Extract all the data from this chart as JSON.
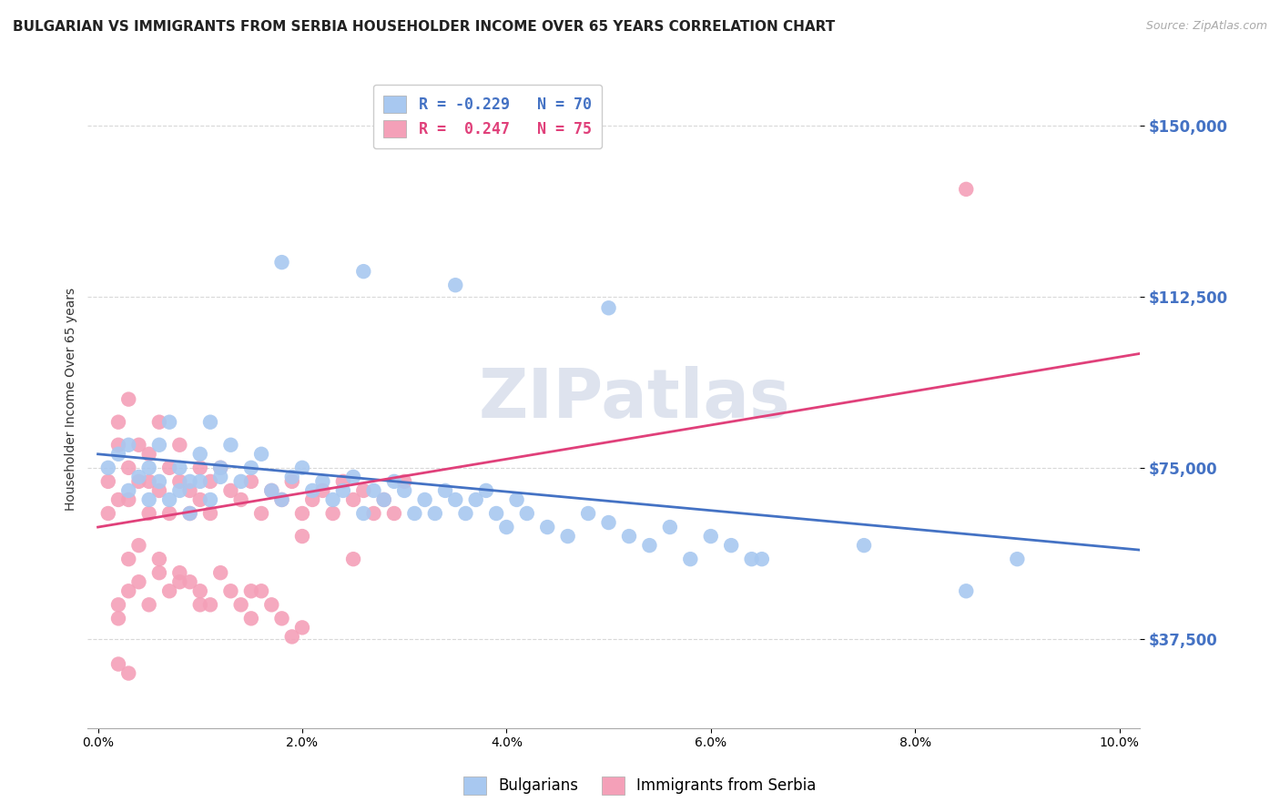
{
  "title": "BULGARIAN VS IMMIGRANTS FROM SERBIA HOUSEHOLDER INCOME OVER 65 YEARS CORRELATION CHART",
  "source": "Source: ZipAtlas.com",
  "ylabel": "Householder Income Over 65 years",
  "ytick_labels": [
    "$37,500",
    "$75,000",
    "$112,500",
    "$150,000"
  ],
  "ytick_values": [
    37500,
    75000,
    112500,
    150000
  ],
  "ylim": [
    18000,
    162000
  ],
  "xlim": [
    -0.001,
    0.102
  ],
  "legend_entries": [
    {
      "label": "R = -0.229   N = 70",
      "color": "#a8c8f0",
      "text_color": "#4472c4"
    },
    {
      "label": "R =  0.247   N = 75",
      "color": "#f4a0b8",
      "text_color": "#e0407a"
    }
  ],
  "legend_labels": [
    "Bulgarians",
    "Immigrants from Serbia"
  ],
  "watermark": "ZIPatlas",
  "blue_scatter": {
    "x": [
      0.001,
      0.002,
      0.003,
      0.003,
      0.004,
      0.005,
      0.005,
      0.006,
      0.006,
      0.007,
      0.007,
      0.008,
      0.008,
      0.009,
      0.009,
      0.01,
      0.01,
      0.011,
      0.011,
      0.012,
      0.012,
      0.013,
      0.014,
      0.015,
      0.016,
      0.017,
      0.018,
      0.019,
      0.02,
      0.021,
      0.022,
      0.023,
      0.024,
      0.025,
      0.026,
      0.027,
      0.028,
      0.029,
      0.03,
      0.031,
      0.032,
      0.033,
      0.034,
      0.035,
      0.036,
      0.037,
      0.038,
      0.039,
      0.04,
      0.041,
      0.042,
      0.044,
      0.046,
      0.048,
      0.05,
      0.052,
      0.054,
      0.056,
      0.058,
      0.06,
      0.062,
      0.064,
      0.018,
      0.026,
      0.035,
      0.05,
      0.065,
      0.075,
      0.085,
      0.09
    ],
    "y": [
      75000,
      78000,
      70000,
      80000,
      73000,
      75000,
      68000,
      72000,
      80000,
      85000,
      68000,
      75000,
      70000,
      72000,
      65000,
      78000,
      72000,
      85000,
      68000,
      75000,
      73000,
      80000,
      72000,
      75000,
      78000,
      70000,
      68000,
      73000,
      75000,
      70000,
      72000,
      68000,
      70000,
      73000,
      65000,
      70000,
      68000,
      72000,
      70000,
      65000,
      68000,
      65000,
      70000,
      68000,
      65000,
      68000,
      70000,
      65000,
      62000,
      68000,
      65000,
      62000,
      60000,
      65000,
      63000,
      60000,
      58000,
      62000,
      55000,
      60000,
      58000,
      55000,
      120000,
      118000,
      115000,
      110000,
      55000,
      58000,
      48000,
      55000
    ]
  },
  "pink_scatter": {
    "x": [
      0.001,
      0.001,
      0.002,
      0.002,
      0.002,
      0.003,
      0.003,
      0.003,
      0.004,
      0.004,
      0.005,
      0.005,
      0.005,
      0.006,
      0.006,
      0.007,
      0.007,
      0.008,
      0.008,
      0.009,
      0.009,
      0.01,
      0.01,
      0.011,
      0.011,
      0.012,
      0.013,
      0.014,
      0.015,
      0.016,
      0.017,
      0.018,
      0.019,
      0.02,
      0.021,
      0.022,
      0.023,
      0.024,
      0.025,
      0.026,
      0.027,
      0.028,
      0.029,
      0.03,
      0.025,
      0.02,
      0.015,
      0.01,
      0.008,
      0.006,
      0.004,
      0.003,
      0.002,
      0.002,
      0.003,
      0.004,
      0.005,
      0.006,
      0.007,
      0.008,
      0.009,
      0.01,
      0.011,
      0.012,
      0.013,
      0.014,
      0.015,
      0.016,
      0.017,
      0.018,
      0.019,
      0.02,
      0.003,
      0.085,
      0.002
    ],
    "y": [
      72000,
      65000,
      80000,
      85000,
      68000,
      90000,
      75000,
      68000,
      80000,
      72000,
      78000,
      65000,
      72000,
      85000,
      70000,
      75000,
      65000,
      72000,
      80000,
      70000,
      65000,
      75000,
      68000,
      72000,
      65000,
      75000,
      70000,
      68000,
      72000,
      65000,
      70000,
      68000,
      72000,
      65000,
      68000,
      70000,
      65000,
      72000,
      68000,
      70000,
      65000,
      68000,
      65000,
      72000,
      55000,
      60000,
      48000,
      45000,
      50000,
      52000,
      58000,
      55000,
      45000,
      42000,
      48000,
      50000,
      45000,
      55000,
      48000,
      52000,
      50000,
      48000,
      45000,
      52000,
      48000,
      45000,
      42000,
      48000,
      45000,
      42000,
      38000,
      40000,
      30000,
      136000,
      32000
    ]
  },
  "blue_line_x": [
    0.0,
    0.102
  ],
  "blue_line_y": [
    78000,
    57000
  ],
  "pink_line_x": [
    0.0,
    0.102
  ],
  "pink_line_y": [
    62000,
    100000
  ],
  "bg_color": "#ffffff",
  "grid_color": "#d8d8d8",
  "blue_color": "#a8c8f0",
  "blue_line_color": "#4472c4",
  "pink_color": "#f4a0b8",
  "pink_line_color": "#e0407a",
  "title_fontsize": 11,
  "axis_label_fontsize": 9,
  "tick_fontsize": 9
}
